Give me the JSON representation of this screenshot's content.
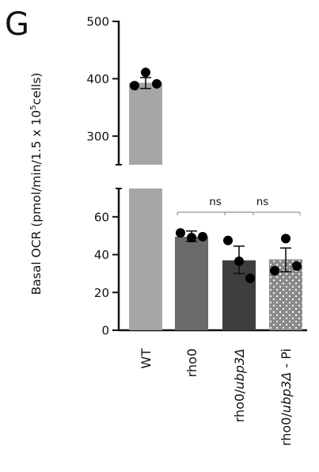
{
  "panel_label": "G",
  "colors": {
    "WT": "#a6a6a8",
    "rho0": "#6a6a6a",
    "rho0_ubp3": "#3e3e3e",
    "rho0_ubp3_pi": "#8a8a8a",
    "axis": "#111111",
    "dot": "#000000",
    "bracket": "#9a9a9a"
  },
  "chart_data": {
    "type": "bar",
    "ylabel": "Basal OCR (pmol/min/1.5 x 10⁵cells)",
    "ylabel_parts": {
      "before": "Basal OCR (pmol/min/1.5 x 10",
      "sup": "5",
      "after": "cells)"
    },
    "broken_axis": true,
    "axis_segments": [
      {
        "range": [
          0,
          75
        ],
        "ticks": [
          0,
          20,
          40,
          60
        ]
      },
      {
        "range": [
          250,
          500
        ],
        "ticks": [
          300,
          400,
          500
        ]
      }
    ],
    "categories": [
      {
        "key": "WT",
        "label": "WT",
        "mean": 393,
        "error": [
          383,
          402
        ],
        "points": [
          388,
          411,
          391
        ],
        "color_key": "WT",
        "pattern": "solid"
      },
      {
        "key": "rho0",
        "label": "rho0",
        "mean": 49.5,
        "error": [
          47,
          52.5
        ],
        "points": [
          51.5,
          49,
          49.5
        ],
        "color_key": "rho0",
        "pattern": "solid"
      },
      {
        "key": "rho0_ubp3",
        "label_prefix": "rho0/",
        "label_italic": "ubp3Δ",
        "label_suffix": "",
        "mean": 37,
        "error": [
          30,
          44.5
        ],
        "points": [
          47.5,
          36.5,
          27.5
        ],
        "color_key": "rho0_ubp3",
        "pattern": "solid"
      },
      {
        "key": "rho0_ubp3_pi",
        "label_prefix": "rho0/",
        "label_italic": "ubp3Δ",
        "label_suffix": " - Pi",
        "mean": 37.5,
        "error": [
          31,
          43.5
        ],
        "points": [
          31.5,
          48.5,
          34
        ],
        "color_key": "rho0_ubp3_pi",
        "pattern": "dots"
      }
    ],
    "comparisons": [
      {
        "from": "rho0",
        "to": "rho0_ubp3",
        "label": "ns"
      },
      {
        "from": "rho0_ubp3",
        "to": "rho0_ubp3_pi",
        "label": "ns"
      }
    ]
  }
}
